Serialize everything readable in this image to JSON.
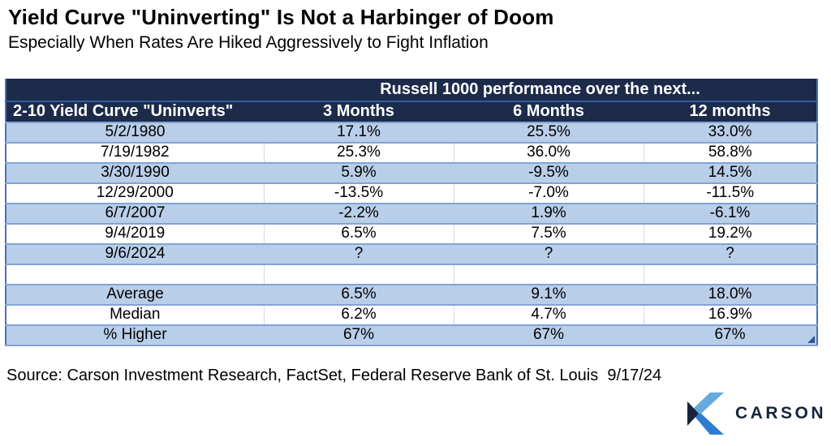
{
  "header": {
    "title": "Yield Curve \"Uninverting\" Is Not a Harbinger of Doom",
    "subtitle": "Especially When Rates Are Hiked Aggressively to Fight Inflation"
  },
  "chart_data": {
    "type": "table",
    "title": "Yield Curve \"Uninverting\" Is Not a Harbinger of Doom",
    "subtitle": "Especially When Rates Are Hiked Aggressively to Fight Inflation",
    "group_header": "Russell 1000 performance over the next...",
    "columns": [
      "2-10 Yield Curve \"Uninverts\"",
      "3 Months",
      "6 Months",
      "12 months"
    ],
    "rows": [
      [
        "5/2/1980",
        "17.1%",
        "25.5%",
        "33.0%"
      ],
      [
        "7/19/1982",
        "25.3%",
        "36.0%",
        "58.8%"
      ],
      [
        "3/30/1990",
        "5.9%",
        "-9.5%",
        "14.5%"
      ],
      [
        "12/29/2000",
        "-13.5%",
        "-7.0%",
        "-11.5%"
      ],
      [
        "6/7/2007",
        "-2.2%",
        "1.9%",
        "-6.1%"
      ],
      [
        "9/4/2019",
        "6.5%",
        "7.5%",
        "19.2%"
      ],
      [
        "9/6/2024",
        "?",
        "?",
        "?"
      ],
      [
        "",
        "",
        "",
        ""
      ],
      [
        "Average",
        "6.5%",
        "9.1%",
        "18.0%"
      ],
      [
        "Median",
        "6.2%",
        "4.7%",
        "16.9%"
      ],
      [
        "% Higher",
        "67%",
        "67%",
        "67%"
      ]
    ],
    "layout_hints": {
      "row_striping": "even rows light blue, odd rows white",
      "header_background": "dark navy",
      "columns_share_group_header": [
        1,
        2,
        3
      ]
    }
  },
  "footer": {
    "source": "Source: Carson Investment Research, FactSet, Federal Reserve Bank of St. Louis  9/17/24"
  },
  "logo": {
    "text": "CARSON"
  },
  "colors": {
    "page_bg": "#ffffff",
    "header_navy": "#1c2b4a",
    "header_divider": "#2e5d9e",
    "row_blue": "#b9cee8",
    "row_border": "#82a4d6",
    "white_divider": "#d9d9d9",
    "outer_border": "#4472c4",
    "marker_blue": "#2f5496",
    "logo_light": "#64aadf",
    "logo_mid": "#2e7cd0",
    "logo_navy": "#16243d"
  }
}
